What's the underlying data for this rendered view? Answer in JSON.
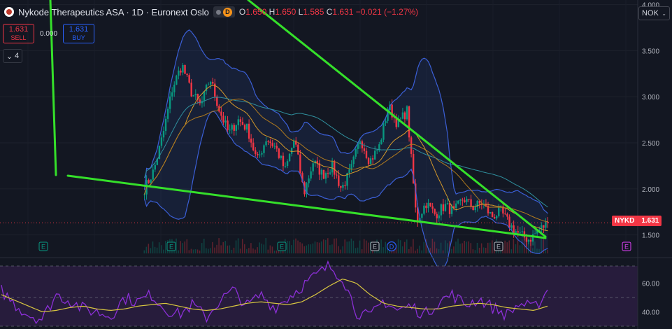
{
  "header": {
    "title": "Nykode Therapeutics ASA · 1D · Euronext Oslo",
    "d_badge": "D",
    "ohlc": {
      "o_label": "O",
      "o": "1.650",
      "h_label": "H",
      "h": "1.650",
      "l_label": "L",
      "l": "1.585",
      "c_label": "C",
      "c": "1.631",
      "change": "−0.021 (−1.27%)"
    }
  },
  "trade": {
    "sell_price": "1.631",
    "sell_label": "SELL",
    "spread": "0.000",
    "buy_price": "1.631",
    "buy_label": "BUY"
  },
  "indicators_count": "4",
  "currency": "NOK",
  "last_price": {
    "symbol": "NYKD",
    "value": "1.631"
  },
  "colors": {
    "up": "#089981",
    "down": "#f23645",
    "trend": "#35e02a",
    "bb": "#3b5fd6",
    "ma_orange": "#d79a2a",
    "ma_teal": "#2f8f9d",
    "rsi": "#8b2fd6",
    "rsi_ma": "#d8c640",
    "rsi_bg": "#2a1d3f"
  },
  "chart_data": [
    {
      "type": "candlestick",
      "title": "Nykode Therapeutics ASA · 1D · Euronext Oslo",
      "ylim": [
        1.3,
        4.05
      ],
      "y_ticks": [
        "4.000",
        "3.500",
        "3.000",
        "2.500",
        "2.000",
        "1.500"
      ],
      "last_value": 1.631,
      "close_path": [
        2.0,
        2.2,
        2.6,
        3.1,
        3.35,
        3.05,
        2.9,
        3.2,
        2.85,
        2.6,
        2.75,
        2.65,
        2.3,
        2.55,
        2.45,
        2.2,
        2.55,
        1.95,
        2.3,
        2.15,
        2.25,
        2.0,
        2.2,
        2.55,
        2.3,
        2.45,
        2.9,
        2.7,
        2.85,
        1.65,
        1.85,
        1.72,
        1.82,
        1.75,
        1.9,
        1.8,
        1.85,
        1.7,
        1.75,
        1.6,
        1.5,
        1.45,
        1.55,
        1.631
      ],
      "event_markers": [
        "E",
        "E",
        "E",
        "E",
        "D",
        "E",
        "E"
      ]
    },
    {
      "type": "line",
      "title": "RSI",
      "ylim": [
        30,
        72
      ],
      "y_ticks": [
        "60.00",
        "40.00"
      ],
      "rsi_path": [
        55,
        45,
        38,
        35,
        52,
        48,
        42,
        40,
        37,
        50,
        47,
        52,
        42,
        38,
        45,
        36,
        48,
        55,
        44,
        52,
        43,
        50,
        58,
        65,
        72,
        64,
        40,
        36,
        48,
        41,
        44,
        38,
        47,
        52,
        45,
        49,
        43,
        38,
        46,
        42,
        55
      ],
      "rsi_ma_path": [
        52,
        48,
        44,
        40,
        41,
        43,
        44,
        42,
        41,
        42,
        44,
        45,
        46,
        44,
        42,
        41,
        42,
        44,
        46,
        47,
        46,
        45,
        47,
        52,
        58,
        63,
        60,
        52,
        46,
        44,
        43,
        42,
        42,
        44,
        45,
        46,
        45,
        43,
        42,
        41,
        44
      ]
    }
  ]
}
